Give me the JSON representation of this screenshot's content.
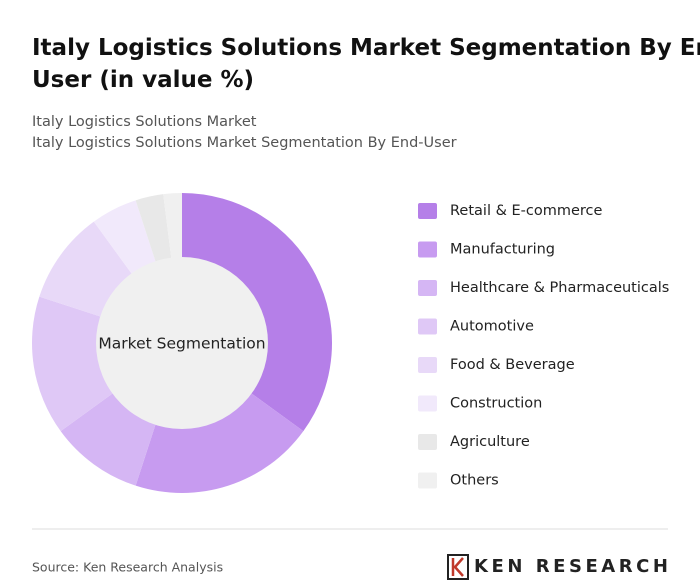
{
  "chart_data": {
    "type": "donut",
    "title": "Italy Logistics Solutions Market Segmentation By End-User (in value %)",
    "subtitle": [
      "Italy Logistics Solutions Market",
      "Italy Logistics Solutions Market Segmentation By End-User"
    ],
    "center_label": "Market Segmentation",
    "categories": [
      "Retail & E-commerce",
      "Manufacturing",
      "Healthcare & Pharmaceuticals",
      "Automotive",
      "Food & Beverage",
      "Construction",
      "Agriculture",
      "Others"
    ],
    "values": [
      35,
      20,
      10,
      15,
      10,
      5,
      3,
      2
    ],
    "colors": [
      "#b57fe8",
      "#c79bf0",
      "#d5b6f4",
      "#dfc8f6",
      "#e8d9f8",
      "#f1e9fb",
      "#e8e8e8",
      "#f0f0f0"
    ],
    "legend": "right",
    "source": "Source: Ken Research Analysis",
    "brand": "KEN RESEARCH"
  }
}
